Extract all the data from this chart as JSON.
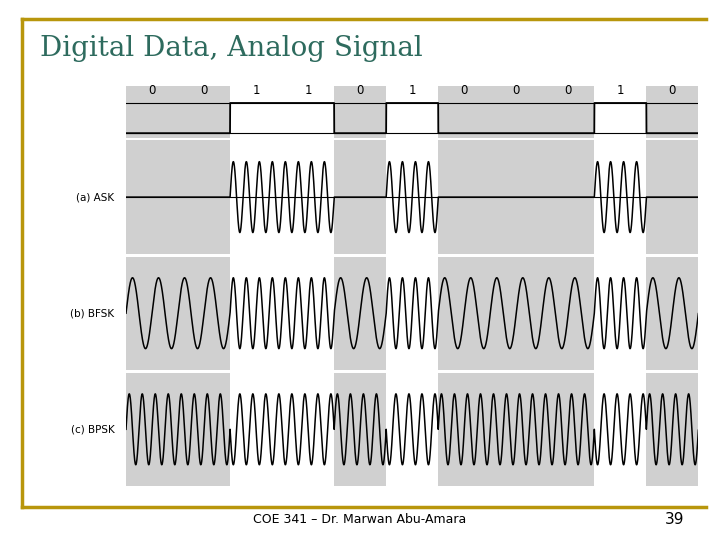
{
  "title": "Digital Data, Analog Signal",
  "title_color": "#2E6B5E",
  "subtitle": "COE 341 – Dr. Marwan Abu-Amara",
  "slide_number": "39",
  "bits": [
    0,
    0,
    1,
    1,
    0,
    1,
    0,
    0,
    0,
    1,
    0
  ],
  "background_color": "#ffffff",
  "shade_color": "#d0d0d0",
  "border_color": "#B8960C",
  "signal_color": "#000000",
  "labels": [
    "(a) ASK",
    "(b) BFSK",
    "(c) BPSK"
  ],
  "ask_carrier_freq": 4.0,
  "bfsk_freq_0": 2.0,
  "bfsk_freq_1": 4.0,
  "bpsk_freq": 4.0,
  "samples_per_bit": 1000
}
